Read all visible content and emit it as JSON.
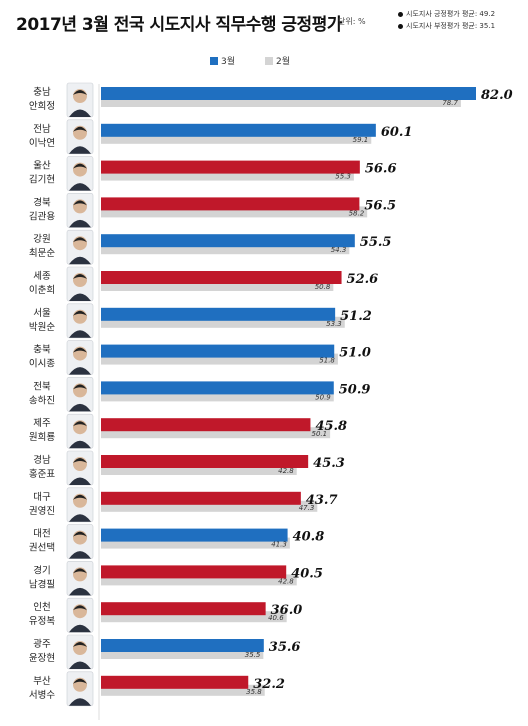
{
  "header": {
    "title": "2017년 3월 전국 시도지사 직무수행 긍정평가",
    "unit": "단위: %",
    "avg_positive": "시도지사 긍정평가 평균: 49.2",
    "avg_negative": "시도지사 부정평가 평균: 35.1"
  },
  "legend": {
    "march": "3월",
    "feb": "2월"
  },
  "colors": {
    "blue": "#1f6fc0",
    "red": "#c0182a",
    "prev": "#d4d4d4"
  },
  "chart_data": {
    "type": "bar",
    "orientation": "horizontal",
    "title": "2017년 3월 전국 시도지사 직무수행 긍정평가",
    "unit": "단위: %",
    "series": [
      {
        "name": "3월",
        "values": [
          82.0,
          60.1,
          56.6,
          56.5,
          55.5,
          52.6,
          51.2,
          51.0,
          50.9,
          45.8,
          45.3,
          43.7,
          40.8,
          40.5,
          36.0,
          35.6,
          32.2
        ]
      },
      {
        "name": "2월",
        "values": [
          78.7,
          59.1,
          55.3,
          58.2,
          54.3,
          50.8,
          53.3,
          51.8,
          50.9,
          50.1,
          42.8,
          47.3,
          41.3,
          42.8,
          40.6,
          35.5,
          35.8
        ]
      }
    ],
    "regions": [
      "충남",
      "전남",
      "울산",
      "경북",
      "강원",
      "세종",
      "서울",
      "충북",
      "전북",
      "제주",
      "경남",
      "대구",
      "대전",
      "경기",
      "인천",
      "광주",
      "부산"
    ],
    "names": [
      "안희정",
      "이낙연",
      "김기현",
      "김관용",
      "최문순",
      "이춘희",
      "박원순",
      "이시종",
      "송하진",
      "원희룡",
      "홍준표",
      "권영진",
      "권선택",
      "남경필",
      "유정복",
      "윤장현",
      "서병수"
    ],
    "march_labels": [
      "82.0",
      "60.1",
      "56.6",
      "56.5",
      "55.5",
      "52.6",
      "51.2",
      "51.0",
      "50.9",
      "45.8",
      "45.3",
      "43.7",
      "40.8",
      "40.5",
      "36.0",
      "35.6",
      "32.2"
    ],
    "feb_labels": [
      "78.7",
      "59.1",
      "55.3",
      "58.2",
      "54.3",
      "50.8",
      "53.3",
      "51.8",
      "50.9",
      "50.1",
      "42.8",
      "47.3",
      "41.3",
      "42.8",
      "40.6",
      "35.5",
      "35.8"
    ],
    "bar_colors": [
      "blue",
      "blue",
      "red",
      "red",
      "blue",
      "red",
      "blue",
      "blue",
      "blue",
      "red",
      "red",
      "red",
      "blue",
      "red",
      "red",
      "blue",
      "red"
    ],
    "xlim": [
      0,
      82
    ],
    "grid": false
  }
}
